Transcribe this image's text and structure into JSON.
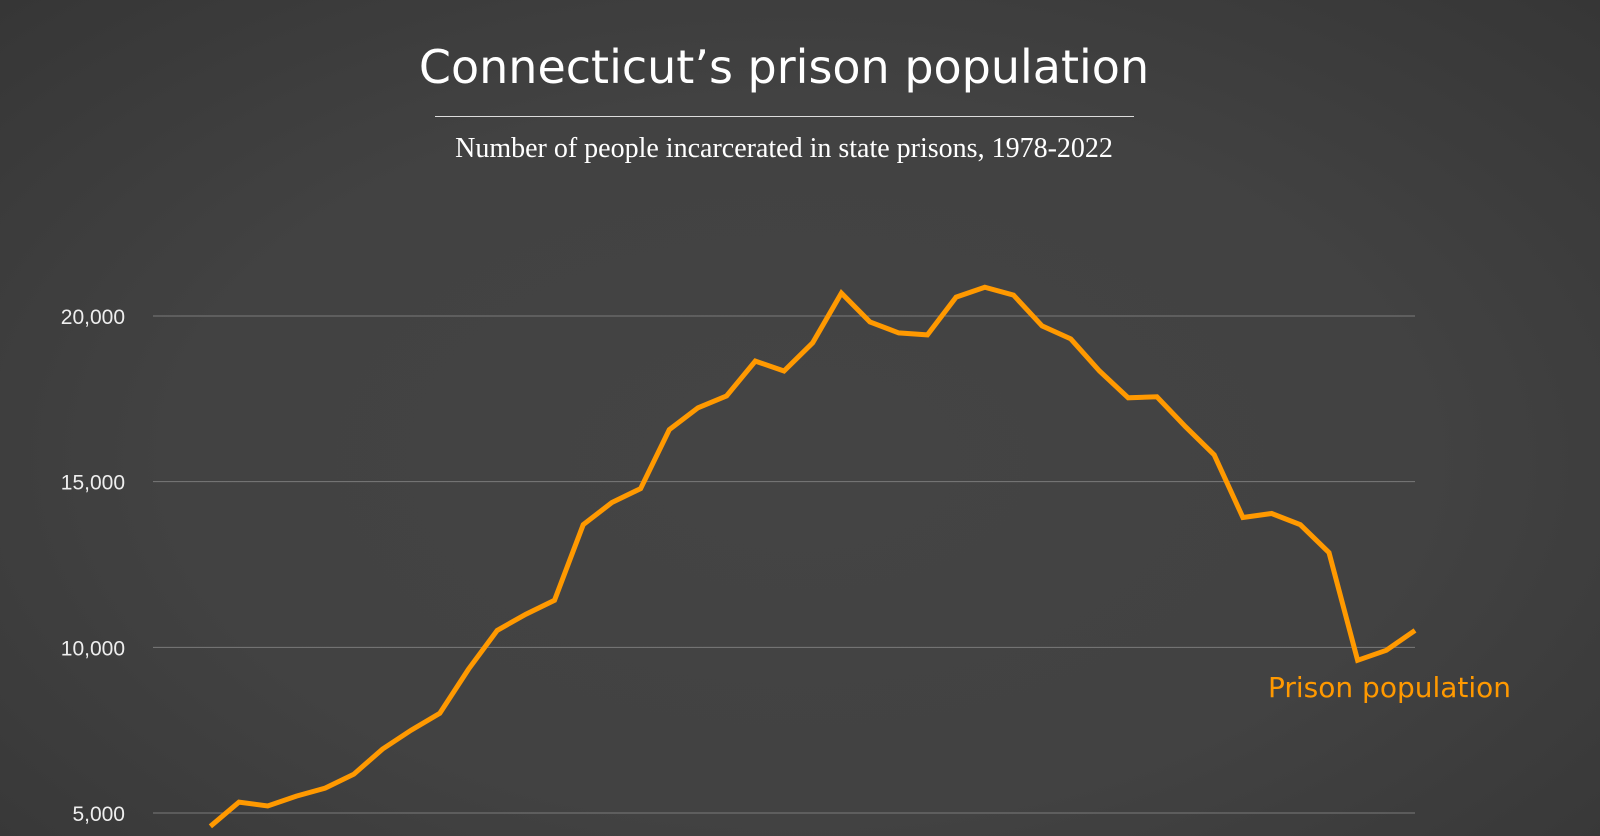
{
  "chart_data": {
    "type": "line",
    "title": "Connecticut’s prison population",
    "subtitle": "Number of people incarcerated in state prisons, 1978-2022",
    "xlabel": "",
    "ylabel": "",
    "xlim": [
      1978,
      2022
    ],
    "ylim": [
      5000,
      20000
    ],
    "grid": true,
    "y_ticks": [
      {
        "value": 20000,
        "label": "20,000"
      },
      {
        "value": 15000,
        "label": "15,000"
      },
      {
        "value": 10000,
        "label": "10,000"
      },
      {
        "value": 5000,
        "label": "5,000"
      }
    ],
    "series": [
      {
        "name": "Prison population",
        "color": "#ff9900",
        "x": [
          1980,
          1981,
          1982,
          1983,
          1984,
          1985,
          1986,
          1987,
          1988,
          1989,
          1990,
          1991,
          1992,
          1993,
          1994,
          1995,
          1996,
          1997,
          1998,
          1999,
          2000,
          2001,
          2002,
          2003,
          2004,
          2005,
          2006,
          2007,
          2008,
          2009,
          2010,
          2011,
          2012,
          2013,
          2014,
          2015,
          2016,
          2017,
          2018,
          2019,
          2020,
          2021,
          2022
        ],
        "y": [
          4600,
          5330,
          5210,
          5510,
          5750,
          6170,
          6930,
          7500,
          8010,
          9340,
          10510,
          11000,
          11420,
          13700,
          14370,
          14790,
          16570,
          17230,
          17590,
          18640,
          18340,
          19190,
          20690,
          19820,
          19490,
          19430,
          20570,
          20870,
          20630,
          19700,
          19310,
          18340,
          17530,
          17560,
          16660,
          15810,
          13920,
          14040,
          13700,
          12860,
          9610,
          9910,
          10510
        ]
      }
    ]
  },
  "colors": {
    "background": "#424242",
    "line": "#ff9900",
    "text": "#ffffff",
    "grid": "#7a7a7a"
  }
}
